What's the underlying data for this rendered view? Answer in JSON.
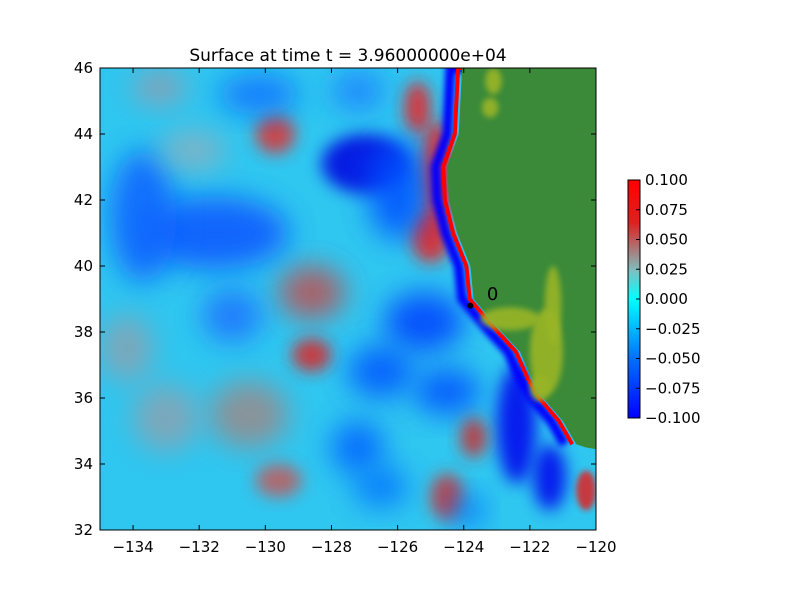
{
  "chart_data": {
    "type": "heatmap",
    "title": "Surface at time t = 3.96000000e+04",
    "xlabel": "",
    "ylabel": "",
    "xlim": [
      -135,
      -120
    ],
    "ylim": [
      32,
      46
    ],
    "xticks": [
      -134,
      -132,
      -130,
      -128,
      -126,
      -124,
      -122,
      -120
    ],
    "xtick_labels": [
      "−134",
      "−132",
      "−130",
      "−128",
      "−126",
      "−124",
      "−122",
      "−120"
    ],
    "yticks": [
      32,
      34,
      36,
      38,
      40,
      42,
      44,
      46
    ],
    "ytick_labels": [
      "32",
      "34",
      "36",
      "38",
      "40",
      "42",
      "44",
      "46"
    ],
    "grid": false,
    "colorbar": {
      "range": [
        -0.1,
        0.1
      ],
      "ticks": [
        0.1,
        0.075,
        0.05,
        0.025,
        0.0,
        -0.025,
        -0.05,
        -0.075,
        -0.1
      ],
      "tick_labels": [
        "0.100",
        "0.075",
        "0.050",
        "0.025",
        "0.000",
        "−0.025",
        "−0.050",
        "−0.075",
        "−0.100"
      ],
      "colors": [
        "#0000ff",
        "#0070ff",
        "#00ffff",
        "#7fbfbf",
        "#e02020",
        "#ff0000"
      ]
    },
    "land_color": "#3a8a3a",
    "highland_color": "#9ab526",
    "coastline_lonlat": [
      [
        -120.0,
        46.0
      ],
      [
        -124.05,
        46.0
      ],
      [
        -124.1,
        45.0
      ],
      [
        -124.15,
        44.0
      ],
      [
        -124.5,
        43.0
      ],
      [
        -124.45,
        42.0
      ],
      [
        -124.2,
        41.0
      ],
      [
        -123.8,
        40.0
      ],
      [
        -123.7,
        39.0
      ],
      [
        -122.85,
        38.0
      ],
      [
        -122.3,
        37.4
      ],
      [
        -121.95,
        36.6
      ],
      [
        -121.6,
        36.0
      ],
      [
        -121.0,
        35.3
      ],
      [
        -120.6,
        34.6
      ],
      [
        -120.3,
        34.5
      ],
      [
        -120.0,
        34.45
      ]
    ],
    "gauge": {
      "label": "0",
      "lon": -123.7,
      "lat": 39.0
    }
  }
}
